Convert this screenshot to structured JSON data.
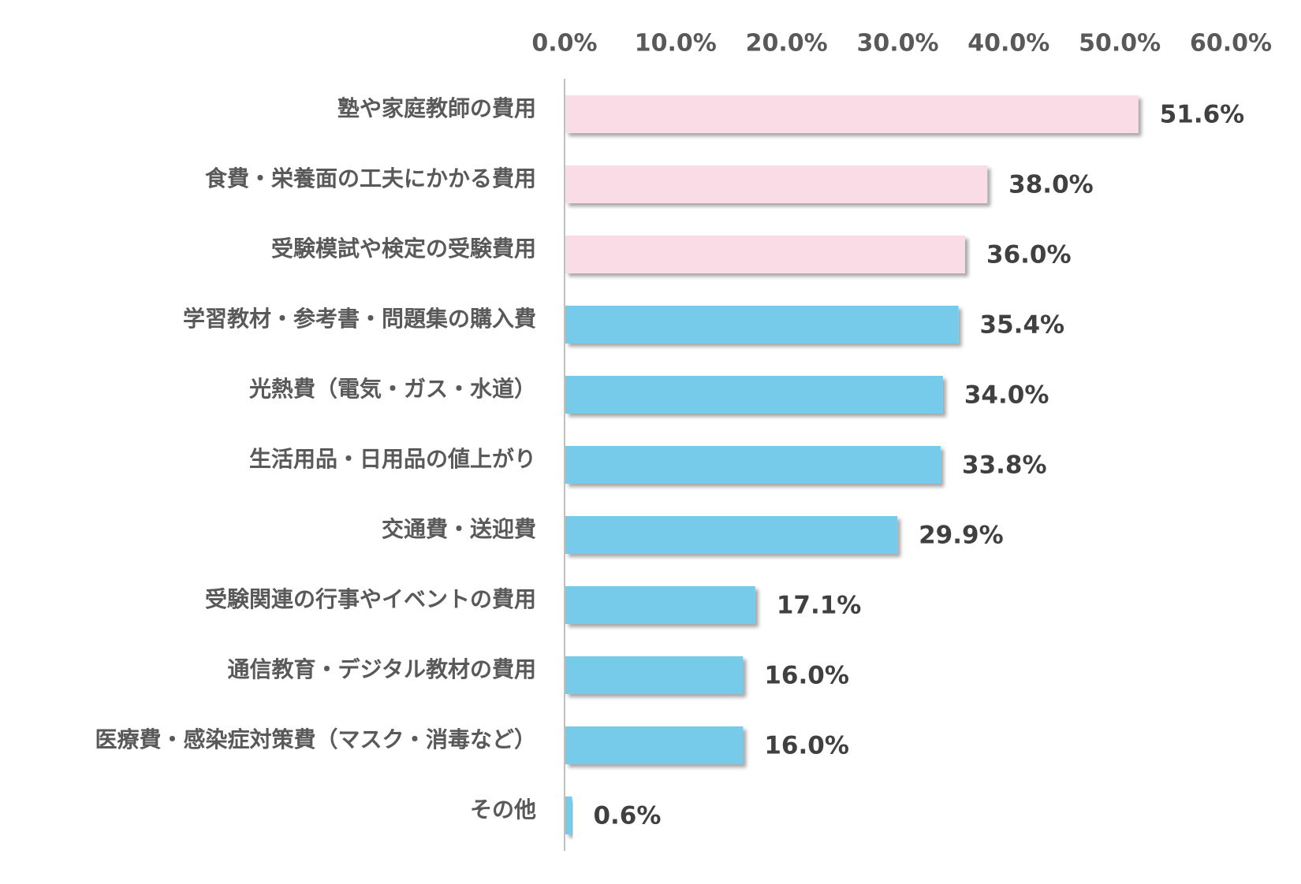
{
  "chart_data": {
    "type": "bar",
    "orientation": "horizontal",
    "categories": [
      "塾や家庭教師の費用",
      "食費・栄養面の工夫にかかる費用",
      "受験模試や検定の受験費用",
      "学習教材・参考書・問題集の購入費",
      "光熱費（電気・ガス・水道）",
      "生活用品・日用品の値上がり",
      "交通費・送迎費",
      "受験関連の行事やイベントの費用",
      "通信教育・デジタル教材の費用",
      "医療費・感染症対策費（マスク・消毒など）",
      "その他"
    ],
    "values": [
      51.6,
      38.0,
      36.0,
      35.4,
      34.0,
      33.8,
      29.9,
      17.1,
      16.0,
      16.0,
      0.6
    ],
    "value_labels": [
      "51.6%",
      "38.0%",
      "36.0%",
      "35.4%",
      "34.0%",
      "33.8%",
      "29.9%",
      "17.1%",
      "16.0%",
      "16.0%",
      "0.6%"
    ],
    "bar_colors": [
      "#f9dce6",
      "#f9dce6",
      "#f9dce6",
      "#76cbea",
      "#76cbea",
      "#76cbea",
      "#76cbea",
      "#76cbea",
      "#76cbea",
      "#76cbea",
      "#76cbea"
    ],
    "xlim": [
      0,
      60
    ],
    "x_ticks": [
      "0.0%",
      "10.0%",
      "20.0%",
      "30.0%",
      "40.0%",
      "50.0%",
      "60.0%"
    ],
    "x_axis_position": "top",
    "grid": false,
    "legend": "none",
    "title": "",
    "xlabel": "",
    "ylabel": ""
  },
  "colors": {
    "highlight": "#f9dce6",
    "default": "#76cbea",
    "axis": "#bfbfbf",
    "text": "#595959",
    "value_text": "#404040"
  }
}
